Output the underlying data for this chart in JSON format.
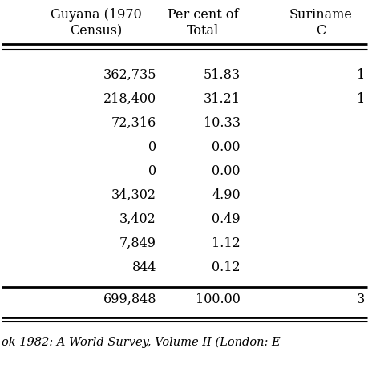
{
  "col_headers_line1": [
    "Guyana (1970",
    "Per cent of",
    "Suriname"
  ],
  "col_headers_line2": [
    "Census)",
    "Total",
    "C"
  ],
  "rows": [
    [
      "362,735",
      "51.83",
      "1"
    ],
    [
      "218,400",
      "31.21",
      "1"
    ],
    [
      "72,316",
      "10.33",
      ""
    ],
    [
      "0",
      "0.00",
      ""
    ],
    [
      "0",
      "0.00",
      ""
    ],
    [
      "34,302",
      "4.90",
      ""
    ],
    [
      "3,402",
      "0.49",
      ""
    ],
    [
      "7,849",
      "1.12",
      ""
    ],
    [
      "844",
      "0.12",
      ""
    ]
  ],
  "total_row": [
    "699,848",
    "100.00",
    "3"
  ],
  "footer": "ok 1982: A World Survey, Volume II (London: E",
  "bg_color": "#ffffff",
  "text_color": "#000000",
  "fontsize": 11.5,
  "footer_fontsize": 10.5
}
